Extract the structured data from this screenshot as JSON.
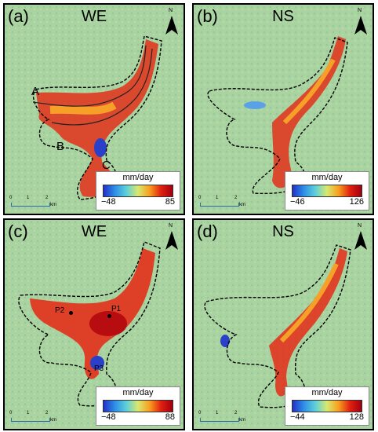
{
  "panels": [
    {
      "label": "(a)",
      "title": "WE",
      "legend": {
        "unit": "mm/day",
        "min": "−48",
        "max": "85"
      },
      "north": "N",
      "scale": [
        "0",
        "1",
        "2",
        "km"
      ],
      "annotations": [
        "A",
        "B",
        "C"
      ]
    },
    {
      "label": "(b)",
      "title": "NS",
      "legend": {
        "unit": "mm/day",
        "min": "−46",
        "max": "126"
      },
      "north": "N",
      "scale": [
        "0",
        "1",
        "2",
        "km"
      ]
    },
    {
      "label": "(c)",
      "title": "WE",
      "legend": {
        "unit": "mm/day",
        "min": "−48",
        "max": "88"
      },
      "north": "N",
      "scale": [
        "0",
        "1",
        "2",
        "km"
      ],
      "points": [
        "P1",
        "P2",
        "P3"
      ]
    },
    {
      "label": "(d)",
      "title": "NS",
      "legend": {
        "unit": "mm/day",
        "min": "−44",
        "max": "128"
      },
      "north": "N",
      "scale": [
        "0",
        "1",
        "2",
        "km"
      ]
    }
  ],
  "colors": {
    "background": "#a9d3a0",
    "high": "#e3301a",
    "mid": "#f7a028",
    "low": "#2a40c8",
    "outline": "#000000"
  }
}
